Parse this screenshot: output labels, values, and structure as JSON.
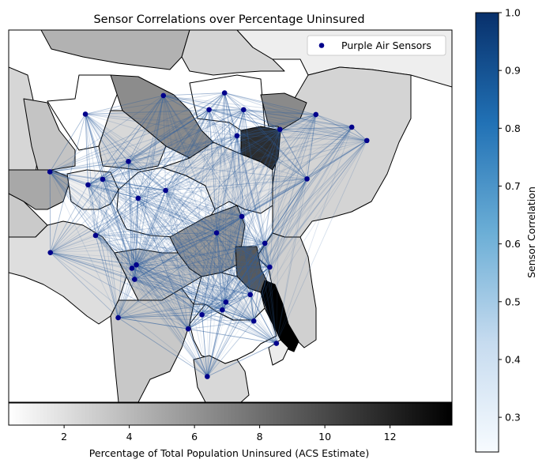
{
  "title": "Sensor Correlations over Percentage Uninsured",
  "legend": {
    "label": "Purple Air Sensors",
    "marker_color": "#00008b"
  },
  "colorbar_right": {
    "label": "Sensor Correlation",
    "min": 0.24,
    "max": 1.0,
    "ticks": [
      "1.0",
      "0.9",
      "0.8",
      "0.7",
      "0.6",
      "0.5",
      "0.4",
      "0.3"
    ],
    "colors": [
      "#f7fbff",
      "#c6dbef",
      "#6baed6",
      "#2171b5",
      "#08306b"
    ]
  },
  "colorbar_bottom": {
    "label": "Percentage of Total Population Uninsured (ACS Estimate)",
    "min": 0.3,
    "max": 13.9,
    "ticks": [
      "2",
      "4",
      "6",
      "8",
      "10",
      "12"
    ],
    "colors": [
      "#ffffff",
      "#000000"
    ]
  },
  "chart_data": {
    "type": "scatter",
    "title": "Sensor Correlations over Percentage Uninsured",
    "series": [
      {
        "name": "Purple Air Sensors",
        "marker": "circle",
        "color": "#00008b",
        "points_norm": [
          [
            0.349,
            0.824
          ],
          [
            0.487,
            0.831
          ],
          [
            0.452,
            0.786
          ],
          [
            0.53,
            0.786
          ],
          [
            0.693,
            0.773
          ],
          [
            0.173,
            0.774
          ],
          [
            0.612,
            0.733
          ],
          [
            0.515,
            0.716
          ],
          [
            0.774,
            0.739
          ],
          [
            0.808,
            0.703
          ],
          [
            0.27,
            0.647
          ],
          [
            0.093,
            0.619
          ],
          [
            0.212,
            0.599
          ],
          [
            0.179,
            0.584
          ],
          [
            0.354,
            0.569
          ],
          [
            0.292,
            0.548
          ],
          [
            0.673,
            0.6
          ],
          [
            0.526,
            0.499
          ],
          [
            0.196,
            0.448
          ],
          [
            0.469,
            0.455
          ],
          [
            0.578,
            0.427
          ],
          [
            0.094,
            0.402
          ],
          [
            0.288,
            0.369
          ],
          [
            0.278,
            0.36
          ],
          [
            0.284,
            0.33
          ],
          [
            0.589,
            0.363
          ],
          [
            0.545,
            0.289
          ],
          [
            0.49,
            0.269
          ],
          [
            0.482,
            0.248
          ],
          [
            0.436,
            0.235
          ],
          [
            0.247,
            0.227
          ],
          [
            0.405,
            0.197
          ],
          [
            0.553,
            0.218
          ],
          [
            0.604,
            0.158
          ],
          [
            0.448,
            0.069
          ]
        ]
      }
    ],
    "sensor_correlation_range": [
      0.24,
      1.0
    ],
    "uninsured_percent_range": [
      0.3,
      13.9
    ]
  }
}
